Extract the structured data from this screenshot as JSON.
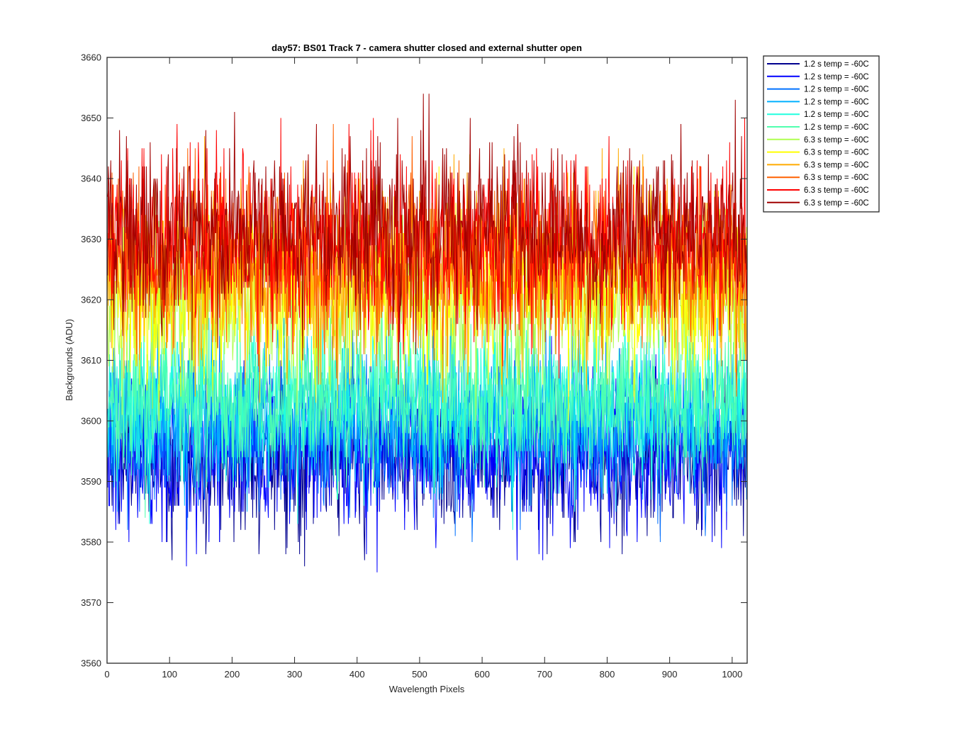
{
  "chart_data": {
    "type": "line",
    "title": "day57: BS01  Track 7 - camera shutter closed and external shutter open",
    "xlabel": "Wavelength Pixels",
    "ylabel": "Backgrounds (ADU)",
    "xlim": [
      0,
      1024
    ],
    "ylim": [
      3560,
      3660
    ],
    "xticks": [
      0,
      100,
      200,
      300,
      400,
      500,
      600,
      700,
      800,
      900,
      1000
    ],
    "yticks": [
      3560,
      3570,
      3580,
      3590,
      3600,
      3610,
      3620,
      3630,
      3640,
      3650,
      3660
    ],
    "grid": false,
    "legend_position": "outside-top-right",
    "note_points": "1024 noisy points per series; values summarized by mean and spread",
    "series": [
      {
        "name": "1.2 s temp = -60C",
        "color": "#00008f",
        "mean": 3594,
        "spread": 6,
        "min": 3576,
        "max": 3612
      },
      {
        "name": "1.2 s temp = -60C",
        "color": "#0000ff",
        "mean": 3595,
        "spread": 6.5,
        "min": 3568,
        "max": 3614
      },
      {
        "name": "1.2 s temp = -60C",
        "color": "#0070ff",
        "mean": 3598,
        "spread": 6,
        "min": 3578,
        "max": 3615
      },
      {
        "name": "1.2 s temp = -60C",
        "color": "#00b0ff",
        "mean": 3601,
        "spread": 6,
        "min": 3580,
        "max": 3617
      },
      {
        "name": "1.2 s temp = -60C",
        "color": "#20ffdf",
        "mean": 3603,
        "spread": 6,
        "min": 3582,
        "max": 3619
      },
      {
        "name": "1.2 s temp = -60C",
        "color": "#50ffaf",
        "mean": 3604,
        "spread": 6,
        "min": 3580,
        "max": 3620
      },
      {
        "name": "6.3 s temp = -60C",
        "color": "#afff50",
        "mean": 3620,
        "spread": 7,
        "min": 3598,
        "max": 3648
      },
      {
        "name": "6.3 s temp = -60C",
        "color": "#ffff00",
        "mean": 3622,
        "spread": 7,
        "min": 3600,
        "max": 3659
      },
      {
        "name": "6.3 s temp = -60C",
        "color": "#ffaa00",
        "mean": 3625,
        "spread": 7,
        "min": 3603,
        "max": 3654
      },
      {
        "name": "6.3 s temp = -60C",
        "color": "#ff6000",
        "mean": 3627,
        "spread": 7,
        "min": 3604,
        "max": 3658
      },
      {
        "name": "6.3 s temp = -60C",
        "color": "#ff0000",
        "mean": 3629,
        "spread": 7,
        "min": 3606,
        "max": 3658
      },
      {
        "name": "6.3 s temp = -60C",
        "color": "#a00000",
        "mean": 3631,
        "spread": 7,
        "min": 3606,
        "max": 3658
      }
    ]
  }
}
